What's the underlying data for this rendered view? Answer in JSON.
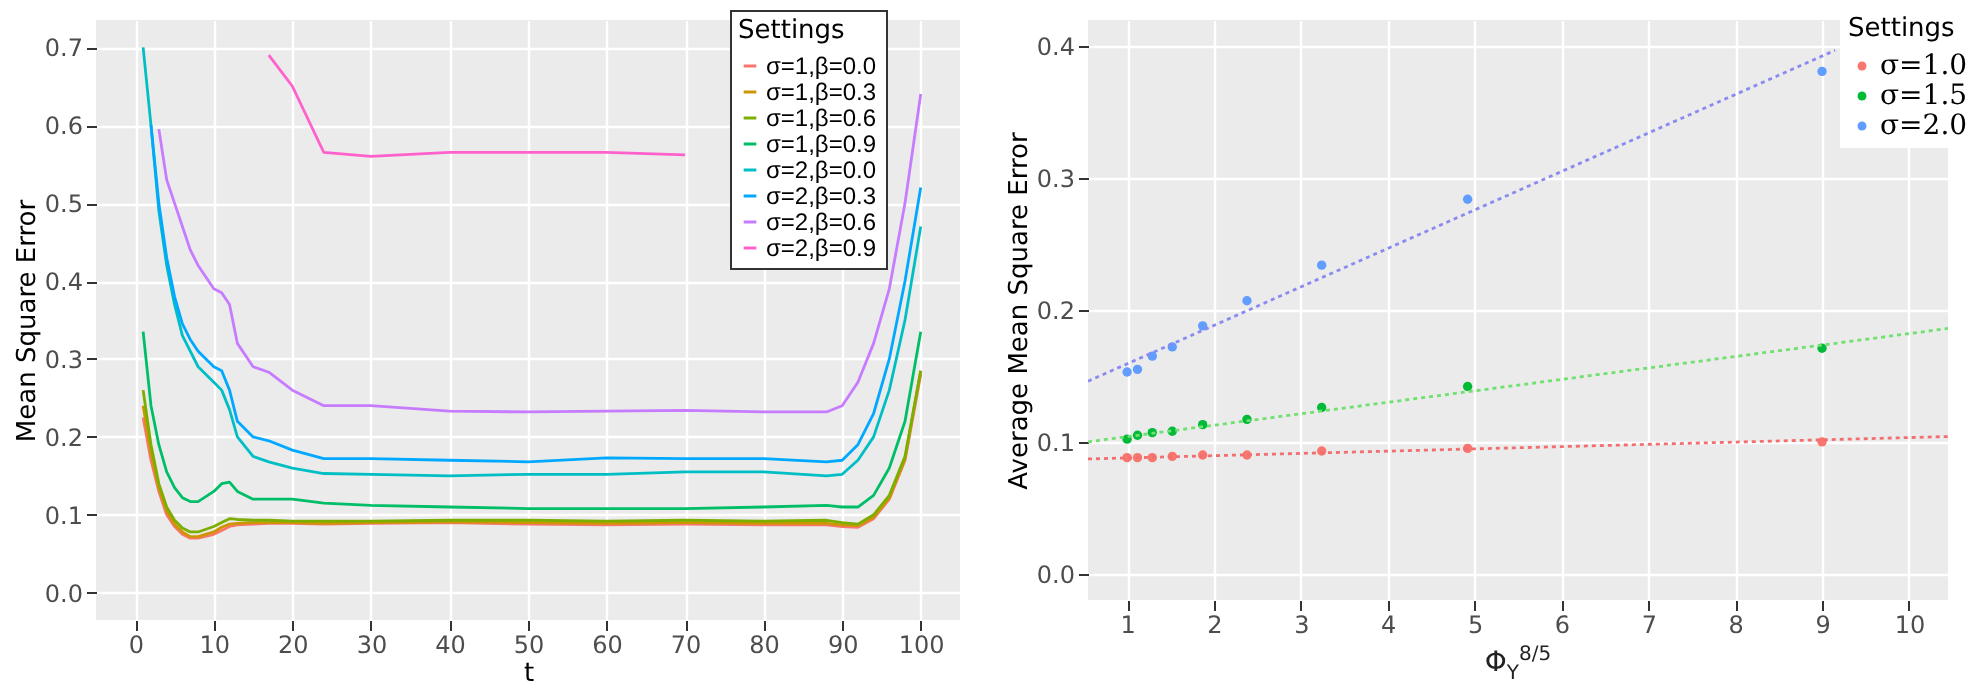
{
  "chart_data": [
    {
      "type": "line",
      "xlabel": "t",
      "ylabel": "Mean Square Error",
      "legend_title": "Settings",
      "legend": "top right",
      "grid": true,
      "x": [
        1,
        2,
        3,
        4,
        5,
        6,
        7,
        8,
        10,
        11,
        12,
        13,
        15,
        17,
        20,
        24,
        30,
        40,
        50,
        60,
        70,
        80,
        88,
        90,
        92,
        94,
        96,
        98,
        100
      ],
      "xlim": [
        -5,
        105
      ],
      "xticks": [
        0,
        10,
        20,
        30,
        40,
        50,
        60,
        70,
        80,
        90,
        100
      ],
      "ylim": [
        -0.035,
        0.735
      ],
      "yticks": [
        {
          "value": 0,
          "label": "0.0"
        },
        0.1,
        0.2,
        0.3,
        0.4,
        0.5,
        0.6,
        0.7
      ],
      "series": [
        {
          "name": "σ=1,β=0.0",
          "color": "#f8766d",
          "values": [
            0.225,
            0.17,
            0.13,
            0.1,
            0.085,
            0.075,
            0.07,
            0.07,
            0.075,
            0.08,
            0.085,
            0.087,
            0.088,
            0.089,
            0.089,
            0.088,
            0.089,
            0.09,
            0.088,
            0.087,
            0.088,
            0.087,
            0.087,
            0.085,
            0.084,
            0.095,
            0.12,
            0.17,
            0.28
          ]
        },
        {
          "name": "σ=1,β=0.3",
          "color": "#cd9600",
          "values": [
            0.24,
            0.18,
            0.135,
            0.105,
            0.088,
            0.078,
            0.072,
            0.072,
            0.078,
            0.084,
            0.088,
            0.089,
            0.09,
            0.09,
            0.09,
            0.089,
            0.09,
            0.091,
            0.09,
            0.089,
            0.09,
            0.089,
            0.089,
            0.087,
            0.086,
            0.097,
            0.122,
            0.172,
            0.285
          ]
        },
        {
          "name": "σ=1,β=0.6",
          "color": "#7cae00",
          "values": [
            0.26,
            0.19,
            0.14,
            0.11,
            0.093,
            0.083,
            0.078,
            0.078,
            0.085,
            0.09,
            0.095,
            0.094,
            0.093,
            0.093,
            0.092,
            0.092,
            0.092,
            0.093,
            0.093,
            0.092,
            0.093,
            0.092,
            0.093,
            0.09,
            0.088,
            0.1,
            0.125,
            0.175,
            0.285
          ]
        },
        {
          "name": "σ=1,β=0.9",
          "color": "#00be67",
          "values": [
            0.335,
            0.24,
            0.19,
            0.155,
            0.135,
            0.122,
            0.117,
            0.117,
            0.13,
            0.14,
            0.142,
            0.13,
            0.12,
            0.12,
            0.12,
            0.115,
            0.112,
            0.11,
            0.108,
            0.108,
            0.108,
            0.11,
            0.112,
            0.11,
            0.11,
            0.125,
            0.16,
            0.22,
            0.335
          ]
        },
        {
          "name": "σ=2,β=0.0",
          "color": "#00bfc4",
          "values": [
            0.7,
            0.6,
            0.49,
            0.42,
            0.37,
            0.33,
            0.31,
            0.29,
            0.27,
            0.26,
            0.235,
            0.2,
            0.175,
            0.168,
            0.16,
            0.153,
            0.152,
            0.15,
            0.152,
            0.152,
            0.155,
            0.155,
            0.15,
            0.152,
            0.17,
            0.2,
            0.26,
            0.35,
            0.47
          ]
        },
        {
          "name": "σ=2,β=0.3",
          "color": "#00a9ff",
          "values": [
            null,
            0.6,
            0.5,
            0.43,
            0.38,
            0.345,
            0.325,
            0.31,
            0.29,
            0.285,
            0.26,
            0.22,
            0.2,
            0.195,
            0.183,
            0.172,
            0.172,
            0.17,
            0.168,
            0.173,
            0.172,
            0.172,
            0.168,
            0.17,
            0.19,
            0.23,
            0.3,
            0.4,
            0.52
          ]
        },
        {
          "name": "σ=2,β=0.6",
          "color": "#c77cff",
          "values": [
            null,
            null,
            0.595,
            0.53,
            0.5,
            0.47,
            0.44,
            0.42,
            0.39,
            0.385,
            0.37,
            0.32,
            0.29,
            0.283,
            0.26,
            0.24,
            0.24,
            0.233,
            0.232,
            0.233,
            0.234,
            0.232,
            0.232,
            0.24,
            0.27,
            0.32,
            0.39,
            0.5,
            0.64
          ]
        },
        {
          "name": "σ=2,β=0.9",
          "color": "#ff61cc",
          "values": [
            null,
            null,
            null,
            null,
            null,
            null,
            null,
            null,
            null,
            null,
            null,
            null,
            null,
            0.69,
            0.65,
            0.565,
            0.56,
            0.565,
            0.565,
            0.565,
            0.562,
            null,
            null,
            null,
            null,
            null,
            null,
            null,
            null
          ]
        }
      ]
    },
    {
      "type": "scatter",
      "xlabel": "Φ$_{Y}$$^{8/5}$",
      "ylabel": "Average Mean Square Error",
      "legend_title": "Settings",
      "legend": "top right",
      "grid": true,
      "marker": "circle",
      "x": [
        1.0,
        1.12,
        1.29,
        1.52,
        1.87,
        2.38,
        3.24,
        4.92,
        9.0
      ],
      "xlim": [
        0.55,
        10.45
      ],
      "xticks": [
        1,
        2,
        3,
        4,
        5,
        6,
        7,
        8,
        9,
        10
      ],
      "ylim": [
        -0.02,
        0.42
      ],
      "yticks": [
        {
          "value": 0,
          "label": "0.0"
        },
        0.1,
        0.2,
        0.3,
        0.4
      ],
      "series": [
        {
          "name": "σ=1.0",
          "color": "#f8766d",
          "values": [
            0.088,
            0.088,
            0.088,
            0.089,
            0.09,
            0.09,
            0.093,
            0.095,
            0.1
          ]
        },
        {
          "name": "σ=1.5",
          "color": "#00ba38",
          "values": [
            0.102,
            0.105,
            0.107,
            0.108,
            0.113,
            0.117,
            0.126,
            0.142,
            0.171
          ]
        },
        {
          "name": "σ=2.0",
          "color": "#619cff",
          "values": [
            0.153,
            0.155,
            0.165,
            0.172,
            0.188,
            0.207,
            0.234,
            0.284,
            0.381
          ]
        },
        {
          "type": "line",
          "line_style": "dotted",
          "marker": "none",
          "color": "#f07070",
          "x": [
            0.55,
            10.45
          ],
          "values": [
            0.087,
            0.104
          ]
        },
        {
          "type": "line",
          "line_style": "dotted",
          "marker": "none",
          "color": "#70e070",
          "x": [
            0.55,
            10.45
          ],
          "values": [
            0.1,
            0.186
          ]
        },
        {
          "type": "line",
          "line_style": "dotted",
          "marker": "none",
          "color": "#8a8af0",
          "x": [
            0.55,
            9.15
          ],
          "values": [
            0.146,
            0.397
          ]
        }
      ]
    }
  ]
}
